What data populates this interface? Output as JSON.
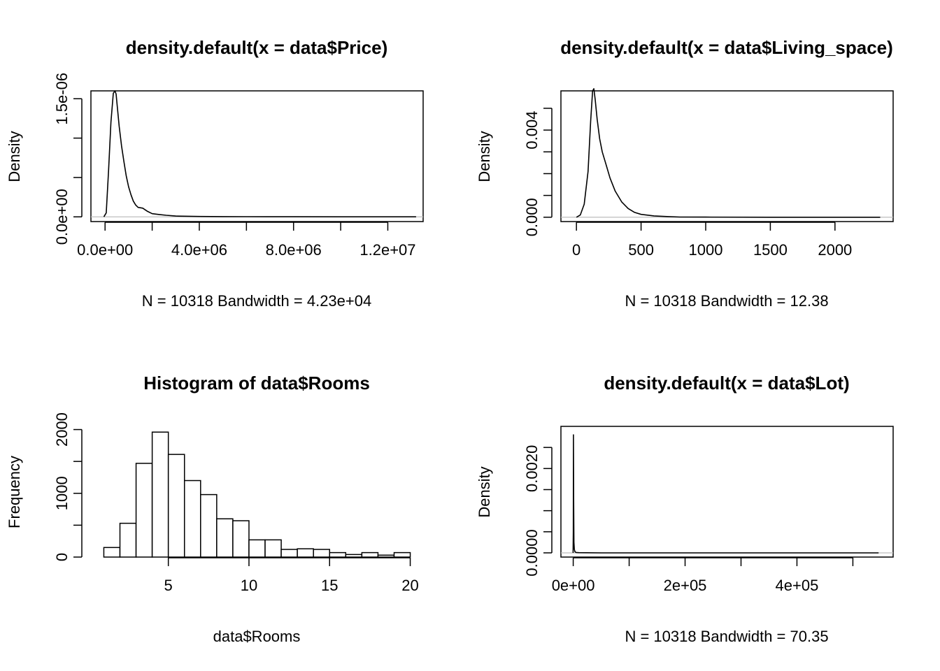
{
  "chart_data": [
    {
      "type": "line",
      "title": "density.default(x = data$Price)",
      "xlabel": "N = 10318   Bandwidth = 4.23e+04",
      "ylabel": "Density",
      "xlim": [
        -600000,
        13500000
      ],
      "ylim": [
        -6e-08,
        1.6e-06
      ],
      "x_ticks": [
        0,
        2000000,
        4000000,
        6000000,
        8000000,
        10000000,
        12000000
      ],
      "x_tick_labels": [
        "0.0e+00",
        "",
        "4.0e+06",
        "",
        "8.0e+06",
        "",
        "1.2e+07"
      ],
      "y_ticks": [
        0,
        5e-07,
        1e-06,
        1.5e-06
      ],
      "y_tick_labels": [
        "0.0e+00",
        "",
        "",
        "1.5e-06"
      ],
      "baseline": 0,
      "series": [
        {
          "x": [
            -50000,
            50000,
            150000,
            250000,
            350000,
            420000,
            470000,
            520000,
            600000,
            700000,
            800000,
            900000,
            1000000,
            1100000,
            1200000,
            1300000,
            1400000,
            1600000,
            1800000,
            2000000,
            2300000,
            2600000,
            3000000,
            4000000,
            5000000,
            6000000,
            8000000,
            10000000,
            12000000,
            13200000
          ],
          "y": [
            0.0,
            5e-08,
            6e-07,
            1.2e-06,
            1.57e-06,
            1.6e-06,
            1.56e-06,
            1.4e-06,
            1.15e-06,
            9e-07,
            7e-07,
            5.2e-07,
            3.8e-07,
            2.8e-07,
            2e-07,
            1.5e-07,
            1.2e-07,
            1.1e-07,
            7e-08,
            4e-08,
            3e-08,
            2e-08,
            1e-08,
            5e-09,
            3e-09,
            2e-09,
            1e-09,
            0.0,
            0.0,
            0.0
          ]
        }
      ]
    },
    {
      "type": "line",
      "title": "density.default(x = data$Living_space)",
      "xlabel": "N = 10318   Bandwidth = 12.38",
      "ylabel": "Density",
      "xlim": [
        -120,
        2450
      ],
      "ylim": [
        -0.0002,
        0.0058
      ],
      "x_ticks": [
        0,
        500,
        1000,
        1500,
        2000
      ],
      "x_tick_labels": [
        "0",
        "500",
        "1000",
        "1500",
        "2000"
      ],
      "y_ticks": [
        0,
        0.001,
        0.002,
        0.003,
        0.004,
        0.005
      ],
      "y_tick_labels": [
        "0.000",
        "",
        "",
        "",
        "0.004",
        ""
      ],
      "baseline": 0,
      "series": [
        {
          "x": [
            0,
            30,
            60,
            90,
            110,
            125,
            135,
            145,
            160,
            180,
            200,
            230,
            260,
            300,
            350,
            400,
            450,
            500,
            600,
            700,
            800,
            1000,
            1500,
            2000,
            2350
          ],
          "y": [
            0.0,
            0.0001,
            0.0006,
            0.0021,
            0.0044,
            0.0058,
            0.0059,
            0.0054,
            0.0045,
            0.0036,
            0.003,
            0.0024,
            0.0018,
            0.0012,
            0.0007,
            0.0004,
            0.00022,
            0.00013,
            6e-05,
            3e-05,
            1e-05,
            5e-06,
            0.0,
            0.0,
            0.0
          ]
        }
      ]
    },
    {
      "type": "bar",
      "title": "Histogram of data$Rooms",
      "xlabel": "data$Rooms",
      "ylabel": "Frequency",
      "xlim": [
        0.2,
        20.8
      ],
      "ylim": [
        0,
        2050
      ],
      "x_ticks": [
        5,
        10,
        15,
        20
      ],
      "x_tick_labels": [
        "5",
        "10",
        "15",
        "20"
      ],
      "y_ticks": [
        0,
        500,
        1000,
        1500,
        2000
      ],
      "y_tick_labels": [
        "0",
        "",
        "1000",
        "",
        "2000"
      ],
      "bins": [
        [
          1,
          2
        ],
        [
          2,
          3
        ],
        [
          3,
          4
        ],
        [
          4,
          5
        ],
        [
          5,
          6
        ],
        [
          6,
          7
        ],
        [
          7,
          8
        ],
        [
          8,
          9
        ],
        [
          9,
          10
        ],
        [
          10,
          11
        ],
        [
          11,
          12
        ],
        [
          12,
          13
        ],
        [
          13,
          14
        ],
        [
          14,
          15
        ],
        [
          15,
          16
        ],
        [
          16,
          17
        ],
        [
          17,
          18
        ],
        [
          18,
          19
        ],
        [
          19,
          20
        ]
      ],
      "values": [
        150,
        530,
        1470,
        1960,
        1610,
        1200,
        980,
        600,
        570,
        270,
        270,
        120,
        130,
        120,
        70,
        40,
        70,
        30,
        70
      ]
    },
    {
      "type": "line",
      "title": "density.default(x = data$Lot)",
      "xlabel": "N = 10318   Bandwidth = 70.35",
      "ylabel": "Density",
      "xlim": [
        -22000,
        572000
      ],
      "ylim": [
        -0.0001,
        0.003
      ],
      "x_ticks": [
        0,
        100000,
        200000,
        300000,
        400000,
        500000
      ],
      "x_tick_labels": [
        "0e+00",
        "",
        "2e+05",
        "",
        "4e+05",
        ""
      ],
      "y_ticks": [
        0,
        0.0005,
        0.001,
        0.0015,
        0.002,
        0.0025
      ],
      "y_tick_labels": [
        "0.0000",
        "",
        "",
        "",
        "0.0020",
        ""
      ],
      "baseline": 0,
      "series": [
        {
          "x": [
            -300,
            100,
            400,
            700,
            1200,
            2000,
            3000,
            5000,
            10000,
            50000,
            100000,
            200000,
            300000,
            400000,
            500000,
            546000
          ],
          "y": [
            0.0,
            0.0005,
            0.0028,
            0.0013,
            0.00025,
            8e-05,
            3e-05,
            1e-05,
            5e-06,
            0.0,
            0.0,
            0.0,
            0.0,
            0.0,
            0.0,
            0.0
          ]
        }
      ]
    }
  ]
}
